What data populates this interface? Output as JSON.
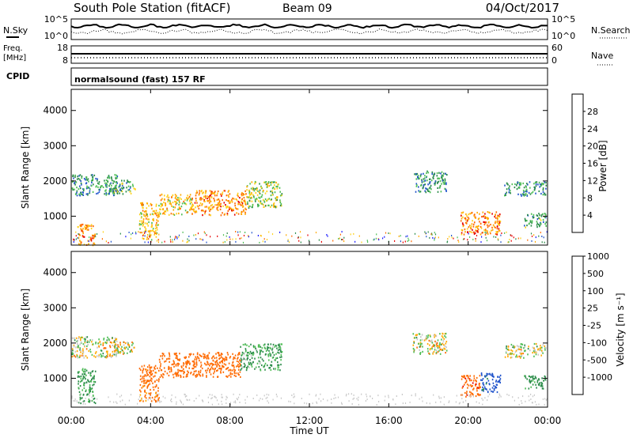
{
  "header": {
    "title": "South Pole Station (fitACF)",
    "beam": "Beam 09",
    "date": "04/Oct/2017"
  },
  "strips": {
    "nsky_label": "N.Sky",
    "nsky_ticks": [
      "10^5",
      "10^0"
    ],
    "nsearch_label": "N.Search",
    "nsearch_ticks": [
      "10^5",
      "10^0"
    ],
    "freq_label": "Freq.",
    "freq_unit": "[MHz]",
    "freq_ticks": [
      "18",
      "8"
    ],
    "nave_label": "Nave",
    "nave_ticks": [
      "60",
      "0"
    ],
    "cpid_label": "CPID",
    "cpid_text": "normalsound (fast) 157 RF"
  },
  "x_axis": {
    "label": "Time UT",
    "ticks": [
      "00:00",
      "04:00",
      "08:00",
      "12:00",
      "16:00",
      "20:00",
      "00:00"
    ]
  },
  "colors": {
    "power": [
      "#1a1aff",
      "#2255cc",
      "#2b8c4a",
      "#4fbf55",
      "#ffd21a",
      "#ffaa00",
      "#ff6a00",
      "#e60000"
    ],
    "velocity": [
      "#e60000",
      "#ff6a00",
      "#ffaa00",
      "#c8c8c8",
      "#c8c8c8",
      "#4fbf55",
      "#2b8c4a",
      "#2255cc"
    ]
  },
  "chart_data": [
    {
      "type": "heatmap",
      "panel": "power",
      "ylabel": "Slant Range [km]",
      "ylim": [
        180,
        4600
      ],
      "yticks": [
        "1000",
        "2000",
        "3000",
        "4000"
      ],
      "xlim_hours": [
        0,
        24
      ],
      "colorbar": {
        "label": "Power [dB]",
        "ticks": [
          "4",
          "8",
          "12",
          "16",
          "20",
          "24",
          "28"
        ],
        "range": [
          0,
          32
        ]
      },
      "regions": [
        {
          "t0": 0.0,
          "t1": 2.3,
          "r0": 1600,
          "r1": 2200,
          "value": 10
        },
        {
          "t0": 0.3,
          "t1": 1.2,
          "r0": 200,
          "r1": 800,
          "value": 24
        },
        {
          "t0": 2.0,
          "t1": 3.2,
          "r0": 1650,
          "r1": 2050,
          "value": 12
        },
        {
          "t0": 3.4,
          "t1": 4.4,
          "r0": 350,
          "r1": 1400,
          "value": 20
        },
        {
          "t0": 4.4,
          "t1": 6.2,
          "r0": 1050,
          "r1": 1650,
          "value": 20
        },
        {
          "t0": 6.2,
          "t1": 8.8,
          "r0": 1050,
          "r1": 1750,
          "value": 24
        },
        {
          "t0": 8.8,
          "t1": 10.6,
          "r0": 1250,
          "r1": 2000,
          "value": 16
        },
        {
          "t0": 17.2,
          "t1": 18.9,
          "r0": 1700,
          "r1": 2300,
          "value": 10
        },
        {
          "t0": 19.6,
          "t1": 21.6,
          "r0": 500,
          "r1": 1150,
          "value": 24
        },
        {
          "t0": 21.8,
          "t1": 23.9,
          "r0": 1600,
          "r1": 2000,
          "value": 10
        },
        {
          "t0": 22.8,
          "t1": 23.9,
          "r0": 700,
          "r1": 1100,
          "value": 12
        }
      ]
    },
    {
      "type": "heatmap",
      "panel": "velocity",
      "ylabel": "Slant Range [km]",
      "ylim": [
        180,
        4600
      ],
      "yticks": [
        "1000",
        "2000",
        "3000",
        "4000"
      ],
      "xlim_hours": [
        0,
        24
      ],
      "colorbar": {
        "label": "Velocity [m s⁻¹]",
        "ticks": [
          "-1000",
          "-500",
          "-100",
          "-25",
          "25",
          "100",
          "500",
          "1000"
        ]
      },
      "regions": [
        {
          "t0": 0.0,
          "t1": 2.3,
          "r0": 1600,
          "r1": 2200,
          "value": 0
        },
        {
          "t0": 0.3,
          "t1": 1.2,
          "r0": 300,
          "r1": 1300,
          "value": 150
        },
        {
          "t0": 2.0,
          "t1": 3.2,
          "r0": 1650,
          "r1": 2050,
          "value": 0
        },
        {
          "t0": 3.4,
          "t1": 4.4,
          "r0": 350,
          "r1": 1400,
          "value": -200
        },
        {
          "t0": 4.4,
          "t1": 8.5,
          "r0": 1050,
          "r1": 1750,
          "value": -300
        },
        {
          "t0": 8.5,
          "t1": 10.6,
          "r0": 1250,
          "r1": 2000,
          "value": 120
        },
        {
          "t0": 17.2,
          "t1": 18.9,
          "r0": 1700,
          "r1": 2300,
          "value": 0
        },
        {
          "t0": 19.6,
          "t1": 20.6,
          "r0": 500,
          "r1": 1100,
          "value": -400
        },
        {
          "t0": 20.6,
          "t1": 21.6,
          "r0": 600,
          "r1": 1200,
          "value": 600
        },
        {
          "t0": 21.8,
          "t1": 23.9,
          "r0": 1600,
          "r1": 2000,
          "value": 0
        },
        {
          "t0": 22.8,
          "t1": 23.9,
          "r0": 700,
          "r1": 1100,
          "value": 200
        }
      ]
    }
  ]
}
